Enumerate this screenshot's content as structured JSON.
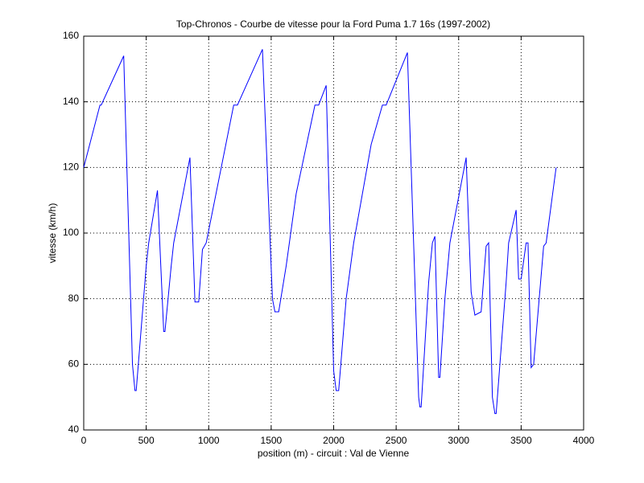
{
  "chart_data": {
    "type": "line",
    "title": "Top-Chronos - Courbe de vitesse pour la Ford Puma 1.7 16s (1997-2002)",
    "x_label": "position (m) - circuit : Val de Vienne",
    "y_label": "vitesse (km/h)",
    "x": [
      0,
      130,
      140,
      320,
      390,
      410,
      420,
      500,
      520,
      590,
      640,
      650,
      700,
      720,
      850,
      890,
      920,
      950,
      980,
      1200,
      1230,
      1430,
      1510,
      1530,
      1560,
      1620,
      1700,
      1850,
      1880,
      1920,
      1940,
      2000,
      2020,
      2040,
      2100,
      2160,
      2300,
      2390,
      2420,
      2590,
      2680,
      2690,
      2700,
      2760,
      2790,
      2810,
      2840,
      2850,
      2890,
      2930,
      3060,
      3100,
      3130,
      3180,
      3220,
      3240,
      3270,
      3290,
      3300,
      3380,
      3400,
      3460,
      3480,
      3500,
      3540,
      3555,
      3580,
      3600,
      3680,
      3700,
      3780
    ],
    "values": [
      120,
      139,
      139,
      154,
      60,
      52,
      52,
      90,
      97,
      113,
      70,
      70,
      90,
      97,
      123,
      79,
      79,
      95,
      97,
      139,
      139,
      156,
      80,
      76,
      76,
      90,
      112,
      139,
      139,
      143,
      145,
      58,
      52,
      52,
      80,
      97,
      127,
      139,
      139,
      155,
      50,
      47,
      47,
      85,
      97,
      99,
      56,
      56,
      80,
      97,
      123,
      82,
      75,
      76,
      96,
      97,
      50,
      45,
      45,
      85,
      97,
      107,
      86,
      86,
      97,
      97,
      59,
      60,
      96,
      97,
      120
    ],
    "color": "#0000ff",
    "xlim": [
      0,
      4000
    ],
    "xticks": [
      0,
      500,
      1000,
      1500,
      2000,
      2500,
      3000,
      3500,
      4000
    ],
    "ylim": [
      40,
      160
    ],
    "yticks": [
      40,
      60,
      80,
      100,
      120,
      140,
      160
    ],
    "grid": true
  }
}
